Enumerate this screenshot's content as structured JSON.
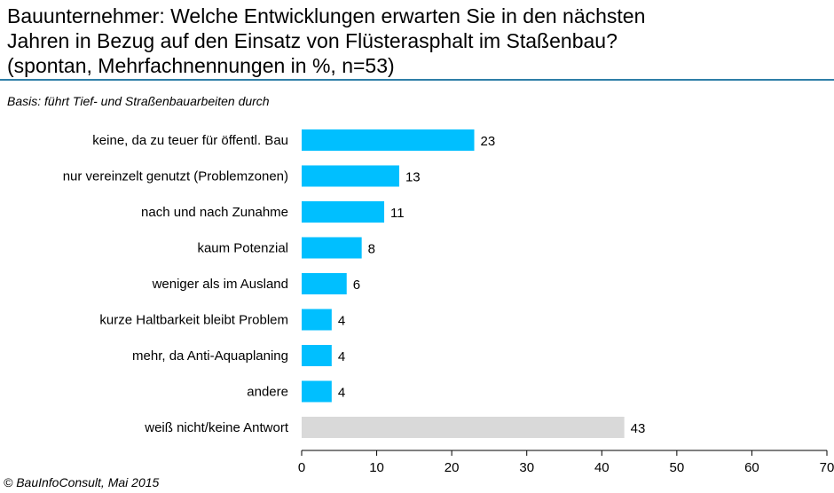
{
  "title_lines": [
    "Bauunternehmer: Welche Entwicklungen erwarten Sie in den nächsten",
    "Jahren in Bezug auf den Einsatz von Flüsterasphalt im Staßenbau?",
    "(spontan, Mehrfachnennungen in %, n=53)"
  ],
  "basis": "Basis: führt Tief- und Straßenbauarbeiten durch",
  "footer": "© BauInfoConsult, Mai 2015",
  "colors": {
    "primary_bar": "#00bfff",
    "other_bar": "#d9d9d9",
    "rule": "#2f7fa8"
  },
  "chart_data": {
    "type": "bar",
    "orientation": "horizontal",
    "categories": [
      "keine, da zu teuer für öffentl. Bau",
      "nur vereinzelt genutzt  (Problemzonen)",
      "nach und nach Zunahme",
      "kaum Potenzial",
      "weniger als im Ausland",
      "kurze Haltbarkeit bleibt Problem",
      "mehr, da Anti-Aquaplaning",
      "andere",
      "weiß nicht/keine Antwort"
    ],
    "values": [
      23,
      13,
      11,
      8,
      6,
      4,
      4,
      4,
      43
    ],
    "value_labels": [
      "23",
      "13",
      "11",
      "8",
      "6",
      "4",
      "4",
      "4",
      "43"
    ],
    "xlim": [
      0,
      70
    ],
    "xticks": [
      0,
      10,
      20,
      30,
      40,
      50,
      60,
      70
    ],
    "xtick_labels": [
      "0",
      "10",
      "20",
      "30",
      "40",
      "50",
      "60",
      "70"
    ],
    "grid": false,
    "highlight_last_bar_gray": true
  }
}
